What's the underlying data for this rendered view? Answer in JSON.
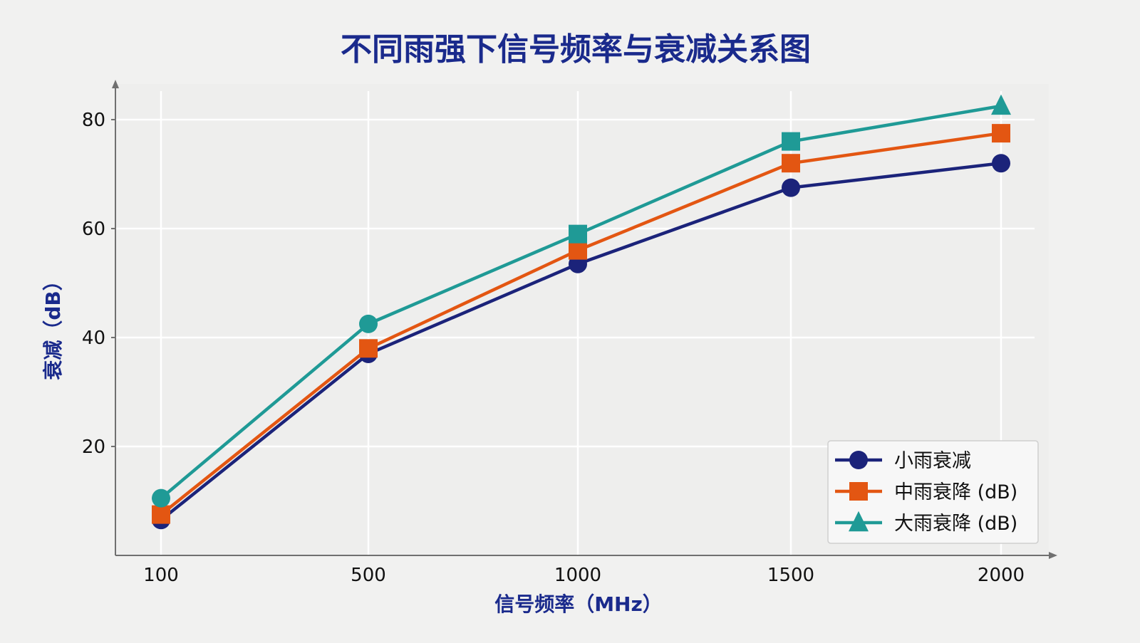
{
  "chart_data": {
    "type": "line",
    "title": "不同雨强下信号频率与衰减关系图",
    "xlabel": "信号频率（MHz）",
    "ylabel": "衰减（dB）",
    "categories": [
      "100",
      "500",
      "1000",
      "1500",
      "2000"
    ],
    "ylim": [
      0,
      87
    ],
    "yticks": [
      20,
      40,
      60,
      80
    ],
    "grid": true,
    "legend_position": "bottom-right",
    "series": [
      {
        "name": "小雨衰减",
        "values": [
          6.5,
          37,
          53.5,
          67.5,
          72
        ],
        "color": "#1b237a",
        "marker": "circle"
      },
      {
        "name": "中雨衰降 (dB)",
        "values": [
          7.5,
          38,
          56,
          72,
          77.5
        ],
        "color": "#e35612",
        "marker": "square"
      },
      {
        "name": "大雨衰降 (dB)",
        "values": [
          10.5,
          42.5,
          59,
          76,
          82.5
        ],
        "color": "#1f9a96",
        "marker": "triangle"
      }
    ],
    "marker_overrides": [
      {
        "series": 2,
        "index": 0,
        "marker": "circle"
      },
      {
        "series": 2,
        "index": 1,
        "marker": "circle"
      },
      {
        "series": 2,
        "index": 2,
        "marker": "square"
      },
      {
        "series": 2,
        "index": 3,
        "marker": "square"
      }
    ],
    "colors": {
      "title": "#1a2a8c",
      "axis_label": "#1a2a8c",
      "grid": "#ffffff",
      "axis": "#707070",
      "tick_text": "#111111"
    }
  }
}
